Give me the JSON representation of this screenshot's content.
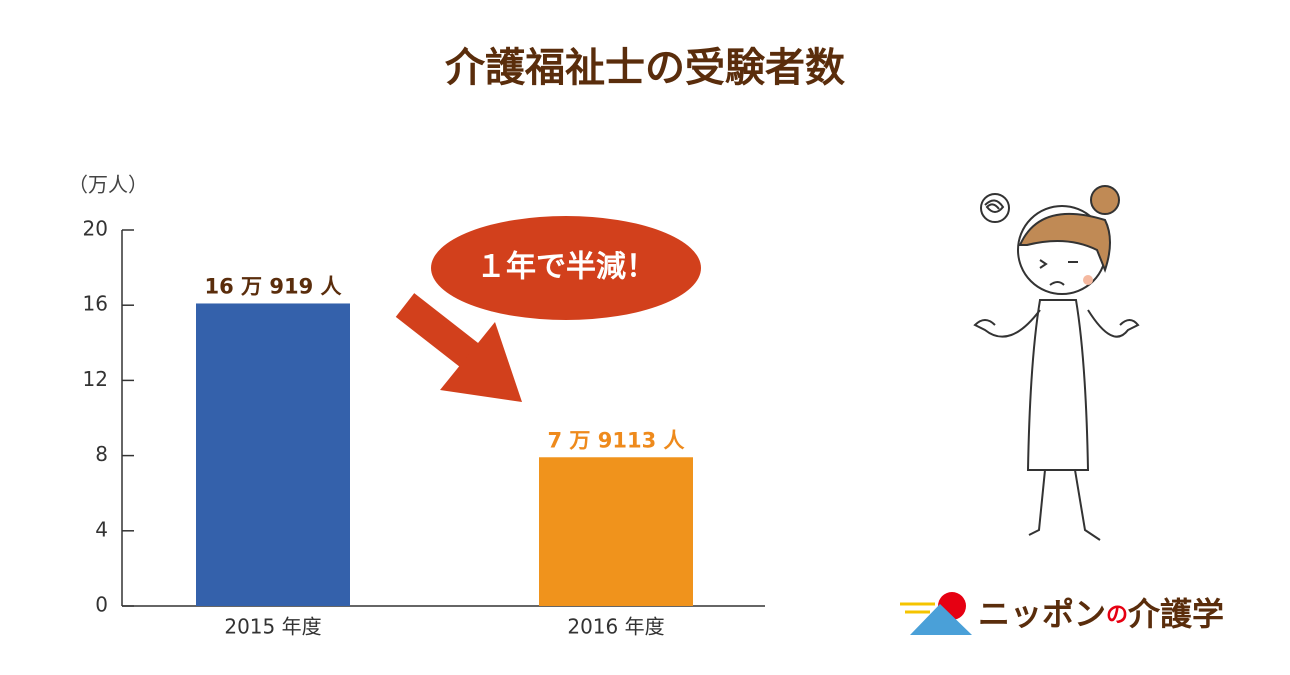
{
  "chart_data": {
    "type": "bar",
    "title": "介護福祉士の受験者数",
    "y_unit_label": "（万人）",
    "categories": [
      "2015 年度",
      "2016 年度"
    ],
    "values": [
      16.0919,
      7.9113
    ],
    "value_labels": [
      "16 万 919 人",
      "7 万 9113 人"
    ],
    "colors": [
      "#3461ab",
      "#f0931c"
    ],
    "value_label_colors": [
      "#5a2d0c",
      "#ee8a1c"
    ],
    "ylim": [
      0,
      20
    ],
    "yticks": [
      0,
      4,
      8,
      12,
      16,
      20
    ],
    "annotation": "１年で半減！",
    "logo": {
      "main": "ニッポン",
      "particle": "の",
      "tail": "介護学"
    }
  }
}
